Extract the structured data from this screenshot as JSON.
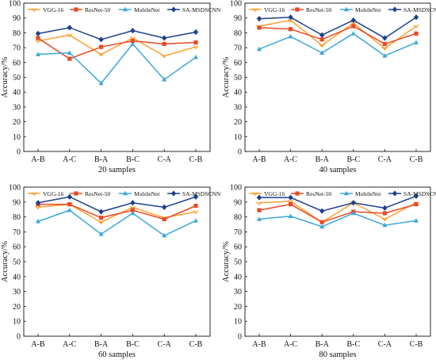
{
  "colors": {
    "VGG-16": "#ffa033",
    "ResNet-50": "#e84a24",
    "MobileNet": "#3aa8d8",
    "SA-MSDSCNN": "#1d3f8c"
  },
  "chart_data": [
    {
      "type": "line",
      "xlabel": "20 samples",
      "ylabel": "Accuracy/%",
      "categories": [
        "A-B",
        "A-C",
        "B-A",
        "B-C",
        "C-A",
        "C-B"
      ],
      "ylim": [
        0,
        100
      ],
      "yticks": [
        "0",
        "10",
        "20",
        "30",
        "40",
        "50",
        "60",
        "70",
        "80",
        "90",
        "100"
      ],
      "legend_position": "top",
      "series": [
        {
          "name": "VGG-16",
          "values": [
            74.5,
            78.5,
            65.5,
            76.5,
            64.5,
            70.5
          ]
        },
        {
          "name": "ResNet-50",
          "values": [
            76.5,
            62.5,
            70.5,
            74.5,
            72.5,
            73.5
          ]
        },
        {
          "name": "MobileNet",
          "values": [
            65.5,
            66.5,
            46,
            72.5,
            48.5,
            63.5
          ]
        },
        {
          "name": "SA-MSDSCNN",
          "values": [
            79.5,
            83.5,
            75.5,
            81.5,
            76.5,
            80.5
          ]
        }
      ]
    },
    {
      "type": "line",
      "xlabel": "40 samples",
      "ylabel": "Accuracy/%",
      "categories": [
        "A-B",
        "A-C",
        "B-A",
        "B-C",
        "C-A",
        "C-B"
      ],
      "ylim": [
        0,
        100
      ],
      "yticks": [
        "0",
        "10",
        "20",
        "30",
        "40",
        "50",
        "60",
        "70",
        "80",
        "90",
        "100"
      ],
      "legend_position": "top",
      "series": [
        {
          "name": "VGG-16",
          "values": [
            84.5,
            88.5,
            71.5,
            86.5,
            69.5,
            84.5
          ]
        },
        {
          "name": "ResNet-50",
          "values": [
            83.5,
            82.5,
            75.5,
            84.5,
            72.5,
            79.5
          ]
        },
        {
          "name": "MobileNet",
          "values": [
            69,
            77.5,
            66.5,
            79.5,
            64.5,
            73.5
          ]
        },
        {
          "name": "SA-MSDSCNN",
          "values": [
            89.5,
            90.5,
            78.5,
            88.5,
            76.5,
            90.5
          ]
        }
      ]
    },
    {
      "type": "line",
      "xlabel": "60 samples",
      "ylabel": "Accuracy/%",
      "categories": [
        "A-B",
        "A-C",
        "B-A",
        "B-C",
        "C-A",
        "C-B"
      ],
      "ylim": [
        0,
        100
      ],
      "yticks": [
        "0",
        "10",
        "20",
        "30",
        "40",
        "50",
        "60",
        "70",
        "80",
        "90",
        "100"
      ],
      "legend_position": "top",
      "series": [
        {
          "name": "VGG-16",
          "values": [
            86.5,
            88.5,
            76.5,
            86.5,
            79.5,
            83.5
          ]
        },
        {
          "name": "ResNet-50",
          "values": [
            88.5,
            88.5,
            79.5,
            84.5,
            78.5,
            87.5
          ]
        },
        {
          "name": "MobileNet",
          "values": [
            77,
            84.5,
            68.5,
            82.5,
            67.5,
            77.5
          ]
        },
        {
          "name": "SA-MSDSCNN",
          "values": [
            89.5,
            93.5,
            83.5,
            89.5,
            86.5,
            93.5
          ]
        }
      ]
    },
    {
      "type": "line",
      "xlabel": "80 samples",
      "ylabel": "Accuracy/%",
      "categories": [
        "A-B",
        "A-C",
        "B-A",
        "B-C",
        "C-A",
        "C-B"
      ],
      "ylim": [
        0,
        100
      ],
      "yticks": [
        "0",
        "10",
        "20",
        "30",
        "40",
        "50",
        "60",
        "70",
        "80",
        "90",
        "100"
      ],
      "legend_position": "top",
      "series": [
        {
          "name": "VGG-16",
          "values": [
            89.5,
            90.5,
            76.5,
            89.5,
            78.5,
            89.5
          ]
        },
        {
          "name": "ResNet-50",
          "values": [
            84.5,
            88.5,
            76.5,
            83.5,
            82.5,
            88.5
          ]
        },
        {
          "name": "MobileNet",
          "values": [
            78.5,
            80.5,
            73.5,
            82.5,
            74.5,
            77.5
          ]
        },
        {
          "name": "SA-MSDSCNN",
          "values": [
            93,
            93,
            84,
            89.5,
            86,
            94
          ]
        }
      ]
    }
  ]
}
